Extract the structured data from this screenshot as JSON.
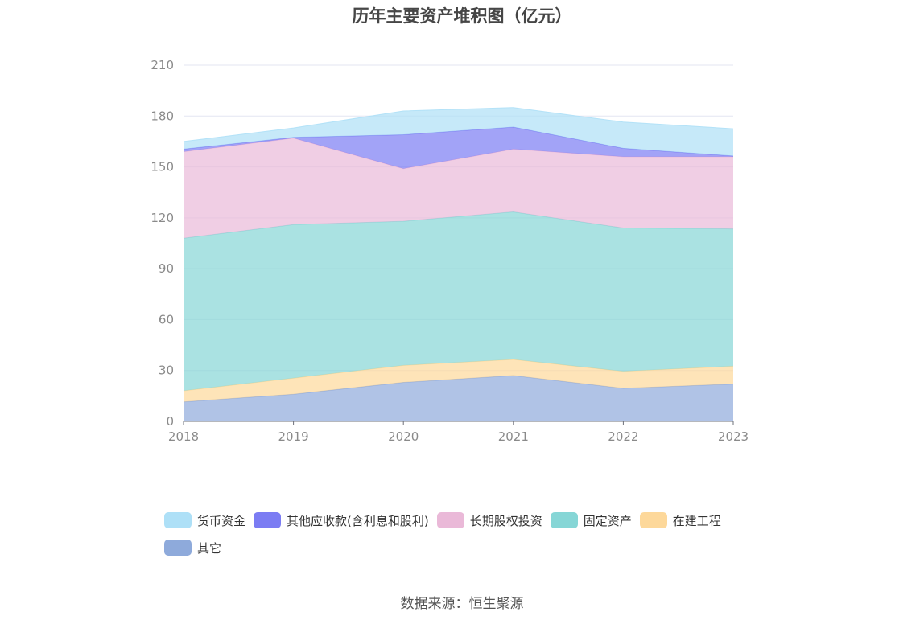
{
  "title": "历年主要资产堆积图（亿元）",
  "source": "数据来源：恒生聚源",
  "chart_data": {
    "type": "area",
    "stacked": true,
    "title": "历年主要资产堆积图（亿元）",
    "x": [
      "2018",
      "2019",
      "2020",
      "2021",
      "2022",
      "2023"
    ],
    "ylim": [
      0,
      210
    ],
    "yticks": [
      "0",
      "30",
      "60",
      "90",
      "120",
      "150",
      "180",
      "210"
    ],
    "grid": true,
    "legend_position": "bottom",
    "series": [
      {
        "name": "其它",
        "color": "#8eaadb",
        "values": [
          11.5,
          16,
          23,
          27,
          19.5,
          22
        ]
      },
      {
        "name": "在建工程",
        "color": "#fdd89a",
        "values": [
          6.5,
          9.5,
          10,
          9.5,
          10,
          10.5
        ]
      },
      {
        "name": "固定资产",
        "color": "#86d6d6",
        "values": [
          90,
          90.5,
          85,
          87,
          84.5,
          81
        ]
      },
      {
        "name": "长期股权投资",
        "color": "#eab9d8",
        "values": [
          51,
          51,
          31,
          37,
          42,
          42.5
        ]
      },
      {
        "name": "其他应收款(含利息和股利)",
        "color": "#7b7cf3",
        "values": [
          1.5,
          0.5,
          20,
          13,
          5,
          0.5
        ]
      },
      {
        "name": "货币资金",
        "color": "#aee0f7",
        "values": [
          4.5,
          5.5,
          14,
          11.5,
          15.5,
          16
        ]
      }
    ],
    "legend_order": [
      "货币资金",
      "其他应收款(含利息和股利)",
      "长期股权投资",
      "固定资产",
      "在建工程",
      "其它"
    ]
  }
}
